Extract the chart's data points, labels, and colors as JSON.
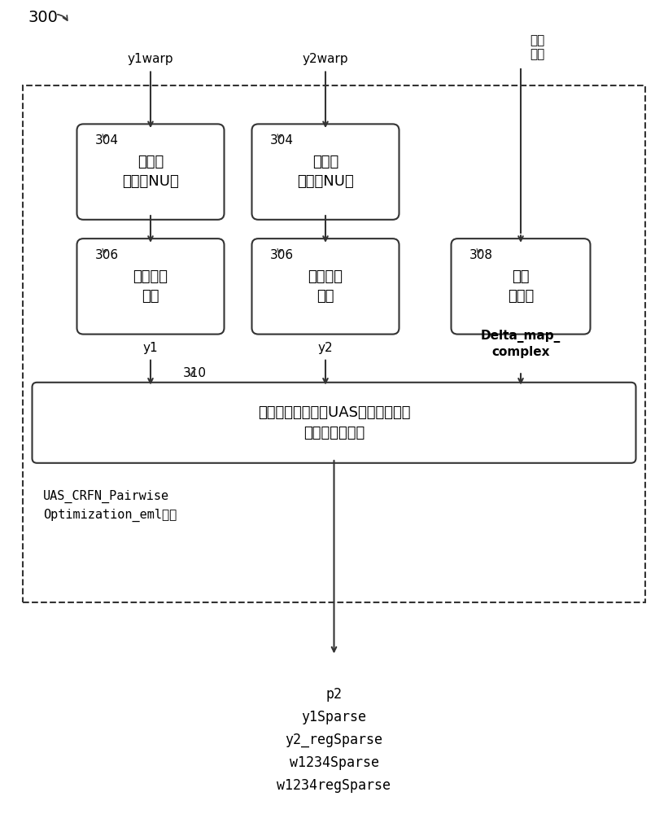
{
  "fig_width": 8.21,
  "fig_height": 10.0,
  "bg_color": "#ffffff",
  "label_300": "300",
  "label_y1warp": "y1warp",
  "label_y2warp": "y2warp",
  "label_calib": "配准\n参数",
  "label_304a": "304",
  "label_304b": "304",
  "label_306a": "306",
  "label_306b": "306",
  "label_308": "308",
  "label_310": "310",
  "box1_text": "去混频\n（去除NU）",
  "box2_text": "去混频\n（去除NU）",
  "box3_text": "透镜畚变\n校正",
  "box4_text": "透镜畚变\n校正",
  "box5_text": "获得\n变形图",
  "box6_text": "相机响应归一化，UAS相机响应函数\n归一化变形（）",
  "label_y1": "y1",
  "label_y2": "y2",
  "label_delta": "Delta_map_\ncomplex",
  "label_uas": "UAS_CRFN_Pairwise\nOptimization_eml（）",
  "output_text": "p2\ny1Sparse\ny2_regSparse\nw1234Sparse\nw1234regSparse",
  "dashed_box_color": "#333333",
  "box_edge_color": "#333333",
  "box_fill_color": "#ffffff",
  "arrow_color": "#333333",
  "text_color": "#000000",
  "font_size_main": 13,
  "font_size_label": 11,
  "font_size_number": 11,
  "font_size_output": 12
}
